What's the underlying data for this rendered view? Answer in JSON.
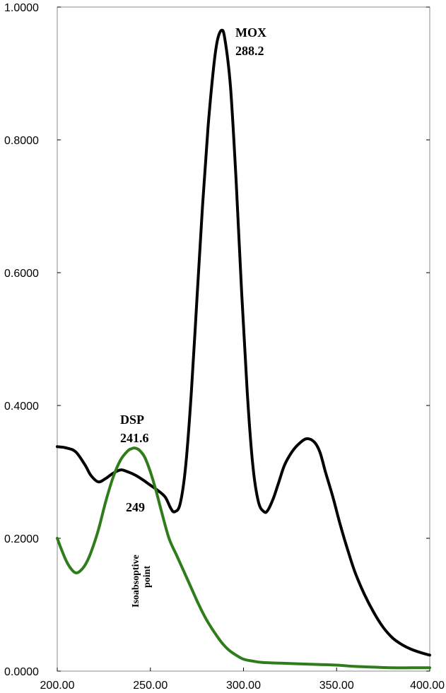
{
  "chart_data": {
    "type": "line",
    "title": "",
    "xlabel": "",
    "ylabel": "",
    "xlim": [
      200,
      400
    ],
    "ylim": [
      0,
      1
    ],
    "grid": false,
    "x_ticks": [
      200,
      250,
      300,
      350,
      400
    ],
    "x_tick_labels": [
      "200.00",
      "250.00",
      "300.00",
      "350.00",
      "400.00"
    ],
    "y_ticks": [
      0,
      0.2,
      0.4,
      0.6,
      0.8,
      1.0
    ],
    "y_tick_labels": [
      "0.0000",
      "0.2000",
      "0.4000",
      "0.6000",
      "0.8000",
      "1.0000"
    ],
    "series": [
      {
        "color": "#000000",
        "x": [
          200,
          205,
          210,
          215,
          218,
          222,
          226,
          230,
          234,
          238,
          242,
          246,
          250,
          254,
          258,
          261,
          263,
          266,
          269,
          272,
          275,
          278,
          281,
          284,
          286,
          288.2,
          290,
          293,
          296,
          299,
          302,
          305,
          308,
          311,
          313,
          316,
          319,
          322,
          326,
          330,
          334,
          338,
          341,
          344,
          348,
          352,
          356,
          360,
          365,
          370,
          375,
          380,
          385,
          390,
          395,
          400
        ],
        "y": [
          0.338,
          0.336,
          0.33,
          0.31,
          0.295,
          0.285,
          0.29,
          0.298,
          0.303,
          0.3,
          0.295,
          0.288,
          0.28,
          0.272,
          0.262,
          0.245,
          0.24,
          0.252,
          0.31,
          0.42,
          0.56,
          0.7,
          0.82,
          0.91,
          0.95,
          0.965,
          0.952,
          0.88,
          0.74,
          0.57,
          0.42,
          0.31,
          0.255,
          0.24,
          0.242,
          0.26,
          0.285,
          0.31,
          0.33,
          0.343,
          0.35,
          0.345,
          0.33,
          0.3,
          0.262,
          0.22,
          0.182,
          0.148,
          0.115,
          0.088,
          0.066,
          0.05,
          0.04,
          0.033,
          0.028,
          0.024
        ]
      },
      {
        "color": "#2e7d1a",
        "x": [
          200,
          202,
          205,
          208,
          210,
          212,
          215,
          218,
          222,
          226,
          230,
          234,
          238,
          240,
          241.6,
          244,
          247,
          250,
          253,
          256,
          260,
          264,
          268,
          272,
          276,
          280,
          284,
          288,
          292,
          296,
          300,
          305,
          310,
          320,
          330,
          340,
          350,
          360,
          370,
          380,
          390,
          400
        ],
        "y": [
          0.2,
          0.185,
          0.165,
          0.152,
          0.148,
          0.15,
          0.16,
          0.178,
          0.212,
          0.255,
          0.292,
          0.318,
          0.332,
          0.335,
          0.336,
          0.333,
          0.322,
          0.3,
          0.272,
          0.24,
          0.2,
          0.175,
          0.15,
          0.125,
          0.1,
          0.078,
          0.06,
          0.044,
          0.032,
          0.024,
          0.018,
          0.015,
          0.013,
          0.012,
          0.011,
          0.01,
          0.009,
          0.007,
          0.006,
          0.005,
          0.005,
          0.005
        ]
      }
    ],
    "annotations": {
      "mox_name": "MOX",
      "mox_value": "288.2",
      "dsp_name": "DSP",
      "dsp_value": "241.6",
      "iso_value": "249",
      "iso_line1": "Isoabsoptive",
      "iso_line2": "point"
    }
  }
}
